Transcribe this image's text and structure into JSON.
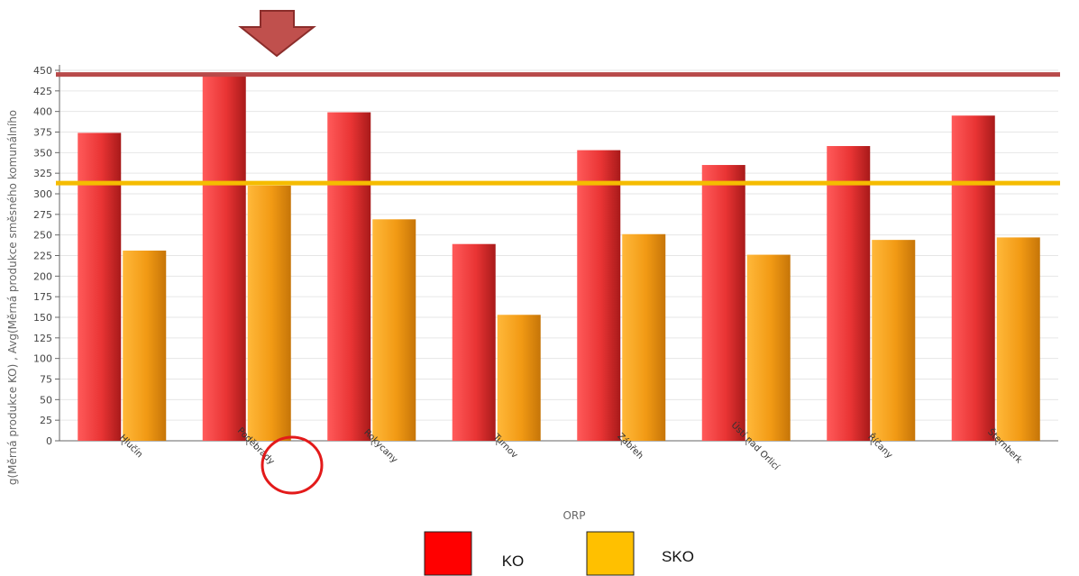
{
  "chart_data": {
    "type": "bar",
    "xlabel": "ORP",
    "ylabel": "g(Měrná produkce KO) , Avg(Měrná produkce směsného komunálního",
    "ylim": [
      0,
      450
    ],
    "yticks": [
      0,
      25,
      50,
      75,
      100,
      125,
      150,
      175,
      200,
      225,
      250,
      275,
      300,
      325,
      350,
      375,
      400,
      425,
      450
    ],
    "categories": [
      "Hlučín",
      "Poděbrady",
      "Rokycany",
      "Turnov",
      "Zábřeh",
      "Ústí nad Orlicí",
      "Říčany",
      "Šternberk"
    ],
    "series": [
      {
        "name": "KO",
        "values": [
          374,
          445,
          399,
          239,
          353,
          335,
          358,
          395
        ]
      },
      {
        "name": "SKO",
        "values": [
          231,
          310,
          269,
          153,
          251,
          226,
          244,
          247
        ]
      }
    ],
    "reference_lines": [
      {
        "value": 445,
        "color": "#b84a4a"
      },
      {
        "value": 313,
        "color": "#f5bc00"
      }
    ],
    "highlight_category": "Poděbrady",
    "grid": true,
    "legend_position": "bottom-center"
  },
  "colors": {
    "ko": "#ff0000",
    "sko": "#ffc000",
    "ko_bar": "#ee3a3a",
    "sko_bar": "#f29a14",
    "arrow": "#c0504d",
    "circle": "#e31a1a"
  },
  "icons": {
    "arrow": "down-arrow-icon",
    "circle": "highlight-circle"
  }
}
